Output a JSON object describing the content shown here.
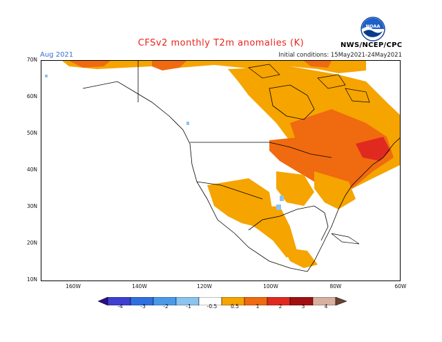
{
  "header": {
    "title": "CFSv2 monthly T2m anomalies (K)",
    "month": "Aug 2021",
    "initial_conditions": "Initial conditions: 15May2021-24May2021",
    "agency": "NWS/NCEP/CPC",
    "logo_text": "NOAA"
  },
  "axes": {
    "lat_labels": [
      "70N",
      "60N",
      "50N",
      "40N",
      "30N",
      "20N",
      "10N"
    ],
    "lon_labels": [
      "160W",
      "140W",
      "120W",
      "100W",
      "80W",
      "60W"
    ]
  },
  "colorbar": {
    "tick_labels": [
      "-4",
      "-3",
      "-2",
      "-1",
      "-0.5",
      "0.5",
      "1",
      "2",
      "3",
      "4"
    ],
    "colors": [
      "#2b0f8a",
      "#3f3fd0",
      "#2f6fe0",
      "#4a9ae8",
      "#8cc4f0",
      "#ffffff",
      "#f5a400",
      "#f06a10",
      "#e02a20",
      "#a01010",
      "#d8b0a0"
    ]
  },
  "map": {
    "region": "North America",
    "anomaly_colors": {
      "warm_05_1": "#f5a400",
      "warm_1_2": "#f06a10",
      "warm_2_3": "#e02a20",
      "cool_05_1": "#8cc4f0"
    }
  }
}
